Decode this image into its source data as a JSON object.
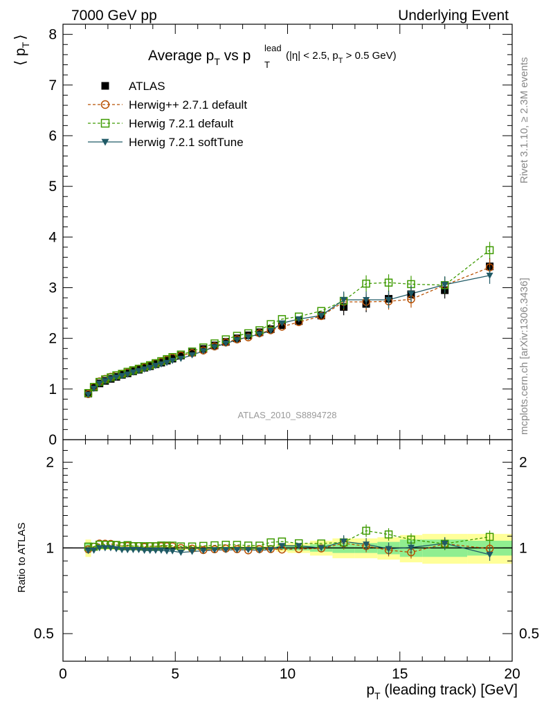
{
  "header": {
    "left": "7000 GeV pp",
    "right": "Underlying Event"
  },
  "title": {
    "main": "Average p",
    "sub_T": "T",
    "vs": " vs p",
    "lead_sup": "lead",
    "lead_sub": "T",
    "cuts_open": "(|η| < 2.5, p",
    "cuts_sub": "T",
    "cuts_close": " > 0.5 GeV)"
  },
  "side_labels": {
    "rivet": "Rivet 3.1.10, ≥ 2.3M events",
    "mcplots": "mcplots.cern.ch [arXiv:1306.3436]"
  },
  "analysis_label": "ATLAS_2010_S8894728",
  "axes": {
    "ylabel_top": "⟨ p",
    "ylabel_top_sub": "T",
    "ylabel_top_close": "⟩",
    "ylabel_bottom": "Ratio to ATLAS",
    "xlabel_p": "p",
    "xlabel_sub": "T",
    "xlabel_rest": " (leading track) [GeV]",
    "x_ticks": [
      "0",
      "5",
      "10",
      "15",
      "20"
    ],
    "y_ticks_top": [
      "0",
      "1",
      "2",
      "3",
      "4",
      "5",
      "6",
      "7",
      "8"
    ],
    "y_ticks_ratio": [
      "0.5",
      "1",
      "2"
    ]
  },
  "legend": {
    "entries": [
      {
        "label": "ATLAS",
        "color": "#000000",
        "marker": "filled-square"
      },
      {
        "label": "Herwig++ 2.7.1 default",
        "color": "#b84f00",
        "marker": "open-circle"
      },
      {
        "label": "Herwig 7.2.1 default",
        "color": "#3d9a00",
        "marker": "open-square"
      },
      {
        "label": "Herwig 7.2.1 softTune",
        "color": "#1f5a66",
        "marker": "filled-triangle"
      }
    ]
  },
  "chart_data": {
    "type": "scatter",
    "xlim": [
      0,
      20
    ],
    "ylim": [
      0,
      8.2
    ],
    "ratio_ylim": [
      0.4,
      2.4
    ],
    "ratio_scale": "log",
    "x": [
      1.125,
      1.375,
      1.625,
      1.875,
      2.125,
      2.375,
      2.625,
      2.875,
      3.125,
      3.375,
      3.625,
      3.875,
      4.125,
      4.375,
      4.625,
      4.875,
      5.25,
      5.75,
      6.25,
      6.75,
      7.25,
      7.75,
      8.25,
      8.75,
      9.25,
      9.75,
      10.5,
      11.5,
      12.5,
      13.5,
      14.5,
      15.5,
      17.0,
      19.0
    ],
    "series": [
      {
        "name": "ATLAS",
        "values": [
          0.91,
          1.03,
          1.11,
          1.16,
          1.2,
          1.24,
          1.28,
          1.31,
          1.35,
          1.38,
          1.42,
          1.45,
          1.49,
          1.52,
          1.56,
          1.6,
          1.66,
          1.72,
          1.79,
          1.86,
          1.93,
          2.0,
          2.06,
          2.12,
          2.18,
          2.26,
          2.34,
          2.45,
          2.62,
          2.68,
          2.78,
          2.87,
          2.95,
          3.42
        ]
      },
      {
        "name": "Herwig++ 2.7.1 default",
        "values": [
          0.9,
          1.04,
          1.15,
          1.2,
          1.24,
          1.27,
          1.3,
          1.33,
          1.37,
          1.4,
          1.43,
          1.47,
          1.51,
          1.54,
          1.58,
          1.62,
          1.66,
          1.71,
          1.76,
          1.84,
          1.92,
          1.98,
          2.02,
          2.1,
          2.16,
          2.23,
          2.32,
          2.44,
          2.72,
          2.72,
          2.73,
          2.77,
          3.05,
          3.4
        ]
      },
      {
        "name": "Herwig 7.2.1 default",
        "values": [
          0.92,
          1.04,
          1.14,
          1.19,
          1.23,
          1.27,
          1.3,
          1.34,
          1.37,
          1.4,
          1.44,
          1.47,
          1.51,
          1.55,
          1.59,
          1.63,
          1.68,
          1.74,
          1.82,
          1.9,
          1.98,
          2.05,
          2.1,
          2.16,
          2.28,
          2.38,
          2.43,
          2.54,
          2.74,
          3.08,
          3.1,
          3.07,
          3.05,
          3.74
        ]
      },
      {
        "name": "Herwig 7.2.1 softTune",
        "values": [
          0.89,
          1.01,
          1.11,
          1.16,
          1.2,
          1.23,
          1.26,
          1.29,
          1.33,
          1.36,
          1.39,
          1.42,
          1.46,
          1.49,
          1.52,
          1.56,
          1.6,
          1.67,
          1.75,
          1.83,
          1.9,
          1.97,
          2.03,
          2.08,
          2.15,
          2.3,
          2.38,
          2.45,
          2.76,
          2.76,
          2.76,
          2.88,
          3.06,
          3.24
        ]
      }
    ],
    "ratio_band": {
      "x_edges": [
        1.0,
        1.25,
        9.5,
        10.0,
        11.0,
        12.0,
        13.0,
        14.0,
        15.0,
        16.0,
        18.0,
        20.0
      ],
      "inner": [
        0.04,
        0.008,
        0.015,
        0.02,
        0.03,
        0.04,
        0.04,
        0.05,
        0.07,
        0.07,
        0.06
      ],
      "outer": [
        0.07,
        0.015,
        0.03,
        0.04,
        0.06,
        0.08,
        0.08,
        0.09,
        0.11,
        0.12,
        0.12
      ]
    }
  }
}
